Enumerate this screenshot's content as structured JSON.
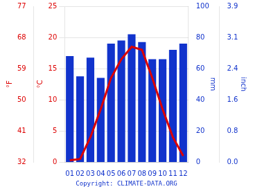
{
  "chart_data": {
    "type": "bar",
    "categories": [
      "01",
      "02",
      "03",
      "04",
      "05",
      "06",
      "07",
      "08",
      "09",
      "10",
      "11",
      "12"
    ],
    "series": [
      {
        "type": "bar",
        "axis": "y2",
        "color": "#1133cc",
        "values": [
          68,
          55,
          67,
          54,
          76,
          78,
          82,
          77,
          66,
          66,
          72,
          76
        ]
      },
      {
        "type": "line",
        "axis": "y",
        "color": "#dd0000",
        "values": [
          0.3,
          0.5,
          4.0,
          8.5,
          13.5,
          16.5,
          18.5,
          18.0,
          13.5,
          8.5,
          4.0,
          1.0
        ]
      }
    ],
    "ylabel": "°C",
    "ylim": [
      0,
      25
    ],
    "yticks": [
      0,
      5,
      10,
      15,
      20,
      25
    ],
    "y2label": "mm",
    "y2lim": [
      0,
      100
    ],
    "y2ticks": [
      0,
      20,
      40,
      60,
      80,
      100
    ],
    "y3label": "°F",
    "y3lim": [
      32,
      77
    ],
    "y3ticks": [
      32,
      41,
      50,
      59,
      68,
      77
    ],
    "y4label": "inch",
    "y4lim": [
      0,
      100
    ],
    "y4ticks": [
      {
        "value": 0,
        "label": "0.0"
      },
      {
        "value": 20,
        "label": "0.8"
      },
      {
        "value": 40,
        "label": "1.6"
      },
      {
        "value": 60,
        "label": "2.4"
      },
      {
        "value": 80,
        "label": "3.1"
      },
      {
        "value": 100,
        "label": "3.9"
      }
    ],
    "annotations": [
      "Copyright: CLIMATE-DATA.ORG"
    ],
    "grid": true
  }
}
